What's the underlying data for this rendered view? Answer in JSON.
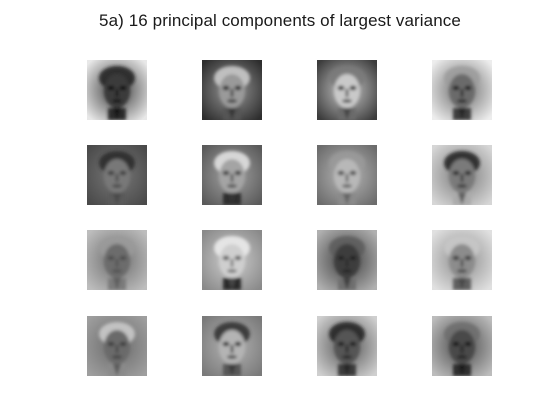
{
  "figure": {
    "title": "5a) 16 principal components of largest variance"
  },
  "components": [
    {
      "rank": 1,
      "bg": "#e8e8e8",
      "face": "#3a3a3a",
      "hair": "#1c1c1c",
      "features": "#0e0e0e",
      "neck": "#2a2a2a"
    },
    {
      "rank": 2,
      "bg": "#2e2e2e",
      "face": "#9a9a9a",
      "hair": "#cfcfcf",
      "features": "#222222",
      "neck": "#555555"
    },
    {
      "rank": 3,
      "bg": "#3c3c3c",
      "face": "#c9c9c9",
      "hair": "#7a7a7a",
      "features": "#2c2c2c",
      "neck": "#6a6a6a"
    },
    {
      "rank": 4,
      "bg": "#ededed",
      "face": "#6a6a6a",
      "hair": "#9c9c9c",
      "features": "#1a1a1a",
      "neck": "#3d3d3d"
    },
    {
      "rank": 5,
      "bg": "#4a4a4a",
      "face": "#787878",
      "hair": "#2a2a2a",
      "features": "#3e3e3e",
      "neck": "#5a5a5a"
    },
    {
      "rank": 6,
      "bg": "#5a5a5a",
      "face": "#a4a4a4",
      "hair": "#e6e6e6",
      "features": "#3a3a3a",
      "neck": "#2e2e2e"
    },
    {
      "rank": 7,
      "bg": "#6c6c6c",
      "face": "#b8b8b8",
      "hair": "#9a9a9a",
      "features": "#4a4a4a",
      "neck": "#8a8a8a"
    },
    {
      "rank": 8,
      "bg": "#d6d6d6",
      "face": "#7a7a7a",
      "hair": "#1e1e1e",
      "features": "#2a2a2a",
      "neck": "#aaaaaa"
    },
    {
      "rank": 9,
      "bg": "#bdbdbd",
      "face": "#6c6c6c",
      "hair": "#9a9a9a",
      "features": "#4c4c4c",
      "neck": "#7a7a7a"
    },
    {
      "rank": 10,
      "bg": "#8a8a8a",
      "face": "#cfcfcf",
      "hair": "#eeeeee",
      "features": "#5a5a5a",
      "neck": "#2a2a2a"
    },
    {
      "rank": 11,
      "bg": "#b0b0b0",
      "face": "#3e3e3e",
      "hair": "#5c5c5c",
      "features": "#222222",
      "neck": "#6e6e6e"
    },
    {
      "rank": 12,
      "bg": "#e0e0e0",
      "face": "#8c8c8c",
      "hair": "#c8c8c8",
      "features": "#3a3a3a",
      "neck": "#5e5e5e"
    },
    {
      "rank": 13,
      "bg": "#9e9e9e",
      "face": "#6a6a6a",
      "hair": "#cccccc",
      "features": "#3c3c3c",
      "neck": "#8a8a8a"
    },
    {
      "rank": 14,
      "bg": "#7a7a7a",
      "face": "#b4b4b4",
      "hair": "#2e2e2e",
      "features": "#2a2a2a",
      "neck": "#565656"
    },
    {
      "rank": 15,
      "bg": "#cfcfcf",
      "face": "#555555",
      "hair": "#1e1e1e",
      "features": "#1a1a1a",
      "neck": "#3a3a3a"
    },
    {
      "rank": 16,
      "bg": "#bcbcbc",
      "face": "#4a4a4a",
      "hair": "#6c6c6c",
      "features": "#161616",
      "neck": "#2e2e2e"
    }
  ]
}
